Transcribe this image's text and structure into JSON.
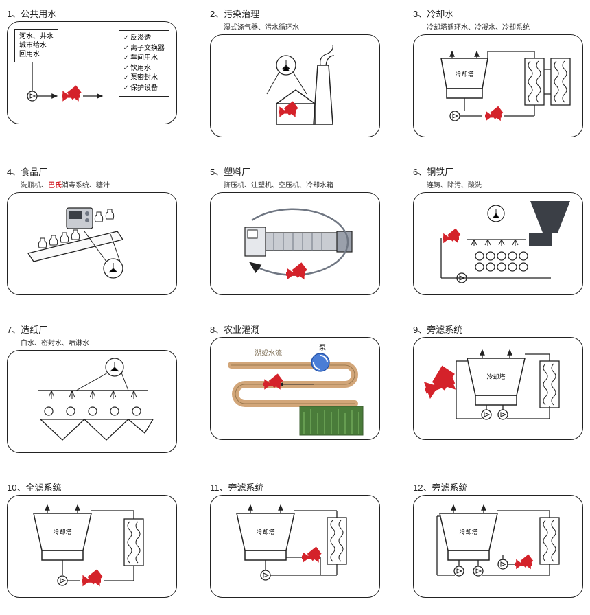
{
  "colors": {
    "stroke": "#222222",
    "red": "#d4222a",
    "blue": "#4a7dd6",
    "tan": "#d2a679",
    "green1": "#4a7c3a",
    "green2": "#6fa859",
    "grayMid": "#6f7682",
    "grayLight": "#c9ccd2",
    "grayDark": "#3b3f46"
  },
  "cards": [
    {
      "num": "1",
      "title": "公共用水",
      "subtitle": "",
      "sourceBox": "河水、井水<br>城市给水<br>回用水",
      "checklist": [
        "反渗透",
        "离子交换器",
        "车间用水",
        "饮用水",
        "泵密封水",
        "保护设备"
      ]
    },
    {
      "num": "2",
      "title": "污染治理",
      "subtitle": "湿式涤气器、污水循环水"
    },
    {
      "num": "3",
      "title": "冷却水",
      "subtitle": "冷却塔循环水、冷凝水、冷却系统",
      "tower": "冷却塔"
    },
    {
      "num": "4",
      "title": "食品厂",
      "subtitle": "洗瓶机、<span class='hot'>巴氏</span>消毒系统、糖汁"
    },
    {
      "num": "5",
      "title": "塑料厂",
      "subtitle": "挤压机、注塑机、空压机、冷却水箱"
    },
    {
      "num": "6",
      "title": "钢铁厂",
      "subtitle": "连铸、除污、酸洗"
    },
    {
      "num": "7",
      "title": "造纸厂",
      "subtitle": "白水、密封水、喷淋水"
    },
    {
      "num": "8",
      "title": "农业灌溉",
      "subtitle": "",
      "lakeLabel": "湖或水流",
      "pumpLabel": "泵"
    },
    {
      "num": "9",
      "title": "旁滤系统",
      "subtitle": "",
      "tower": "冷却塔"
    },
    {
      "num": "10",
      "title": "全滤系统",
      "subtitle": "",
      "tower": "冷却塔"
    },
    {
      "num": "11",
      "title": "旁滤系统",
      "subtitle": "",
      "tower": "冷却塔"
    },
    {
      "num": "12",
      "title": "旁滤系统",
      "subtitle": "",
      "tower": "冷却塔"
    }
  ]
}
